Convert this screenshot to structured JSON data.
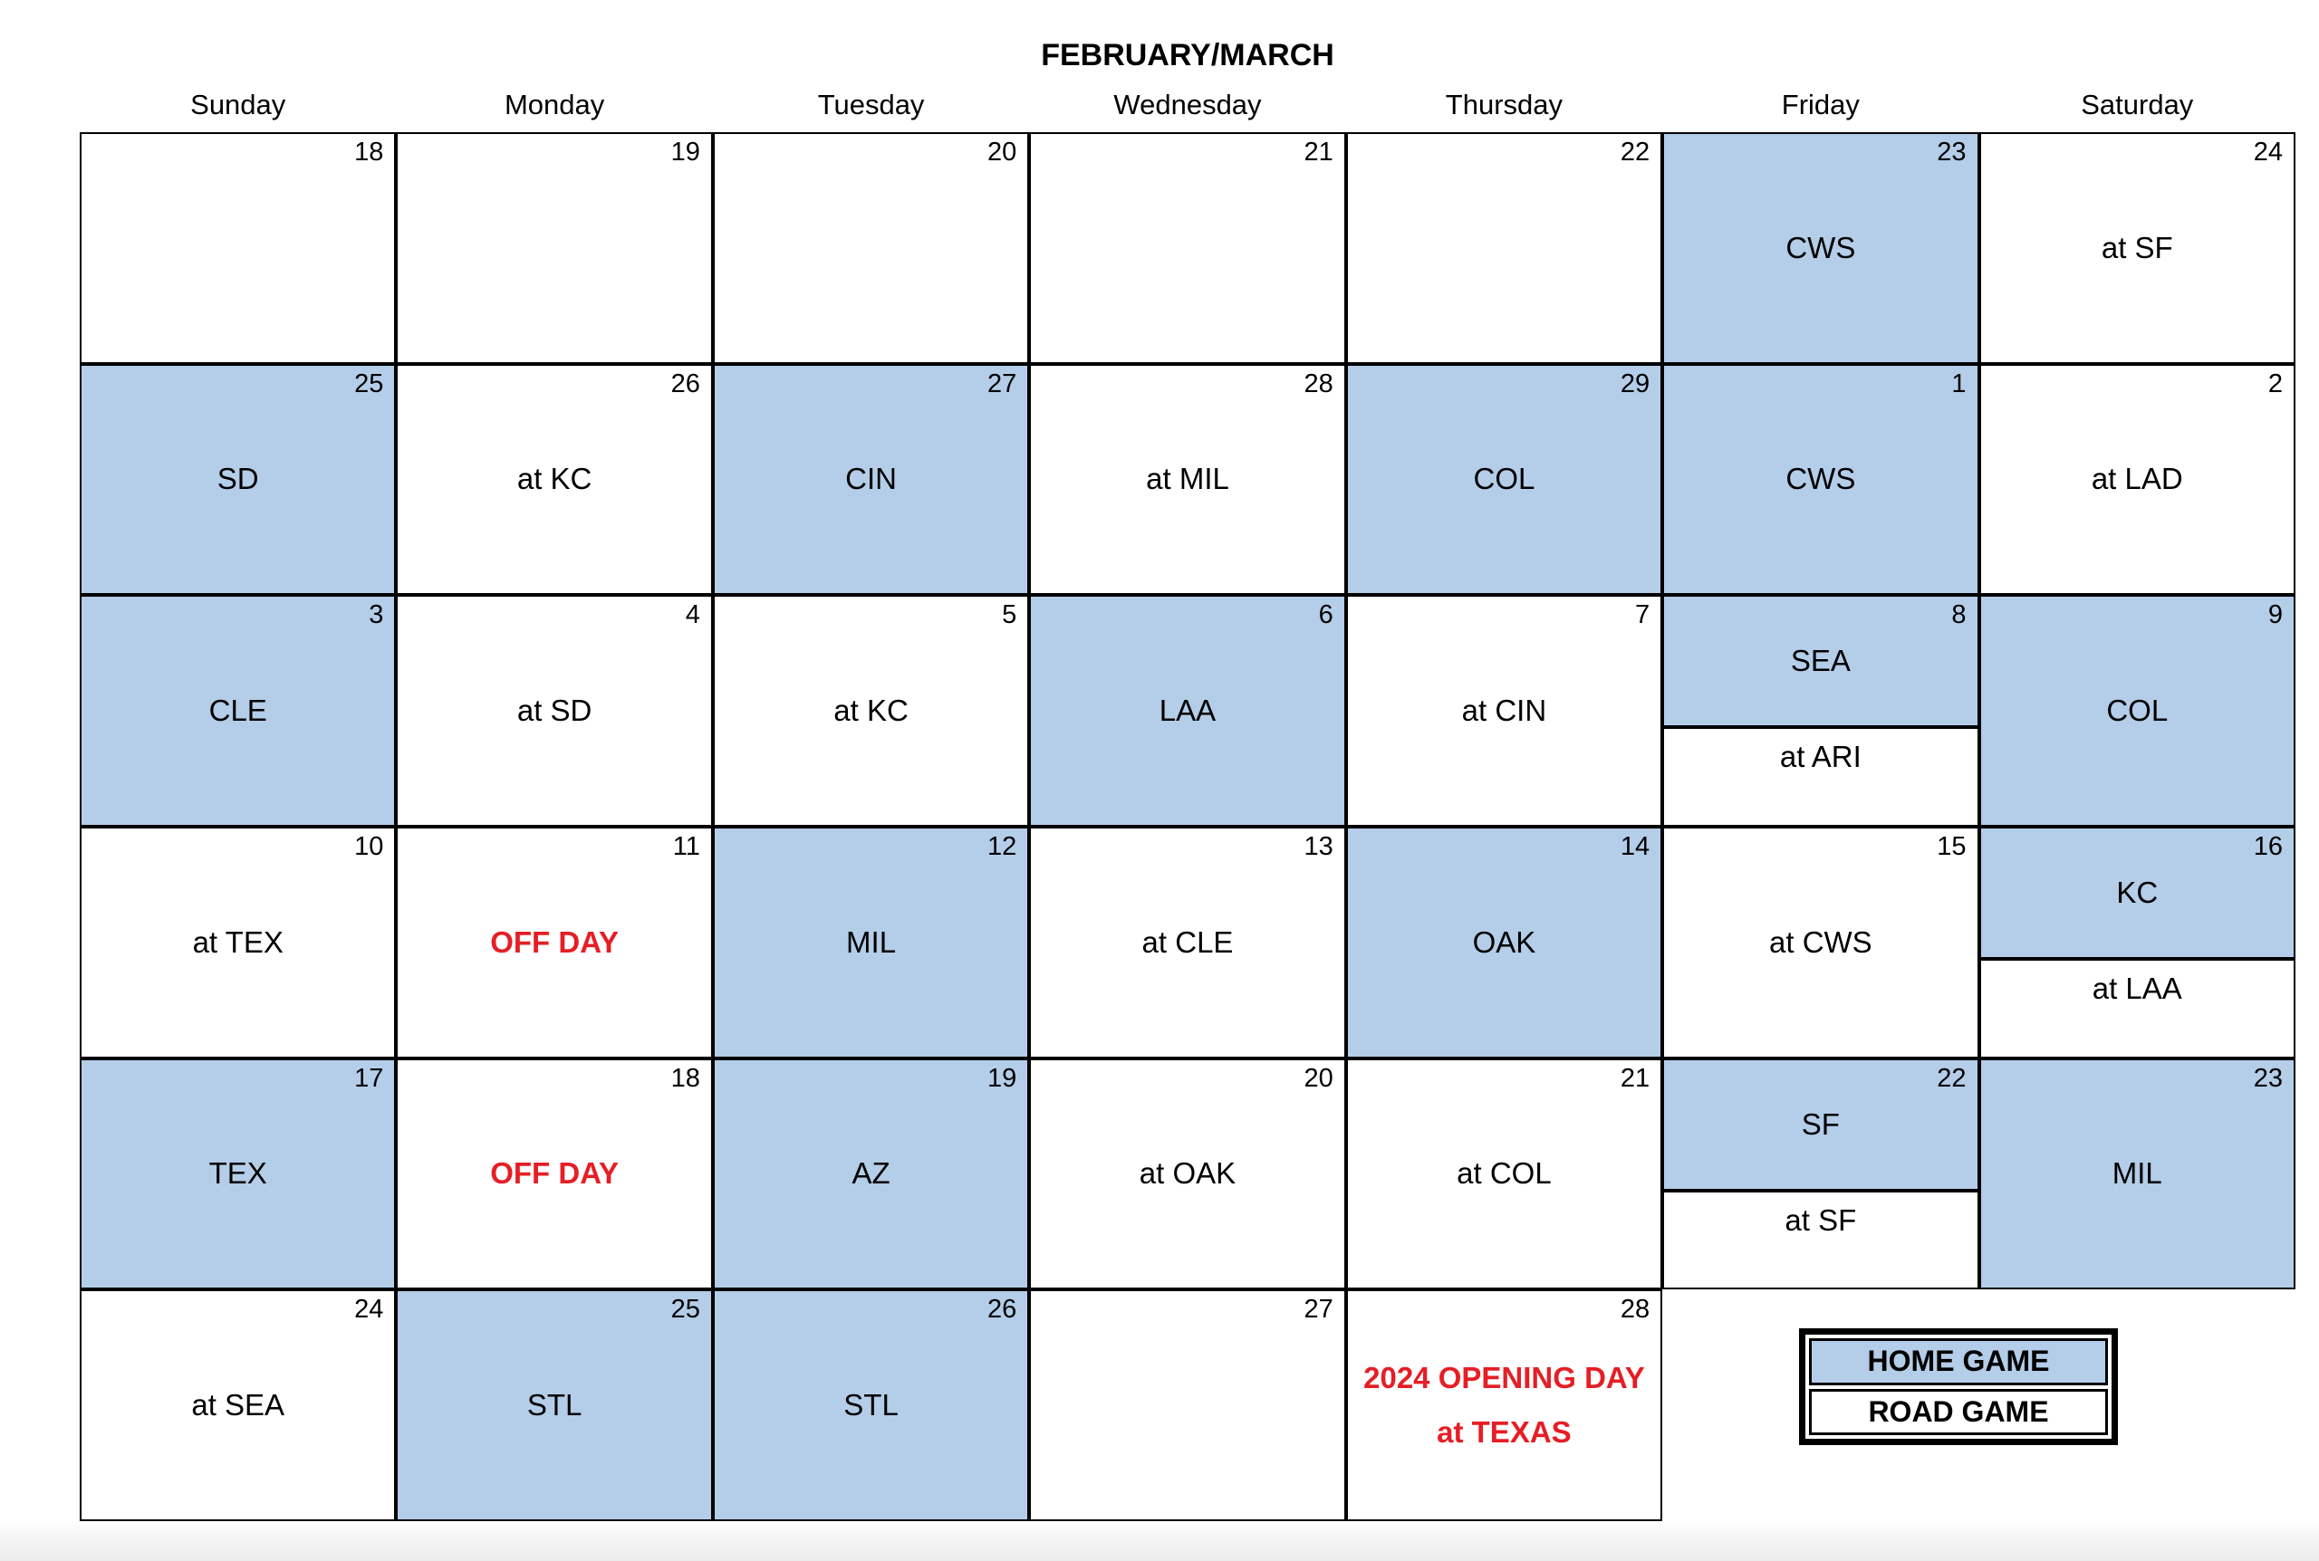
{
  "title": "FEBRUARY/MARCH",
  "day_headers": [
    "Sunday",
    "Monday",
    "Tuesday",
    "Wednesday",
    "Thursday",
    "Friday",
    "Saturday"
  ],
  "colors": {
    "home_game_blue": "#b4cde8",
    "road_game_white": "#ffffff",
    "highlight_red": "#e61e25",
    "grid_black": "#000000"
  },
  "legend": {
    "home_label": "HOME GAME",
    "road_label": "ROAD GAME"
  },
  "weeks": [
    {
      "cells": [
        {
          "date": "18"
        },
        {
          "date": "19"
        },
        {
          "date": "20"
        },
        {
          "date": "21"
        },
        {
          "date": "22"
        },
        {
          "date": "23",
          "label": "CWS"
        },
        {
          "date": "24",
          "label": "at SF"
        }
      ]
    },
    {
      "cells": [
        {
          "date": "25",
          "label": "SD"
        },
        {
          "date": "26",
          "label": "at KC"
        },
        {
          "date": "27",
          "label": "CIN"
        },
        {
          "date": "28",
          "label": "at MIL"
        },
        {
          "date": "29",
          "label": "COL"
        },
        {
          "date": "1",
          "label": "CWS"
        },
        {
          "date": "2",
          "label": "at LAD"
        }
      ]
    },
    {
      "cells": [
        {
          "date": "3",
          "label": "CLE"
        },
        {
          "date": "4",
          "label": "at SD"
        },
        {
          "date": "5",
          "label": "at KC"
        },
        {
          "date": "6",
          "label": "LAA"
        },
        {
          "date": "7",
          "label": "at CIN"
        },
        {
          "date": "8",
          "home_label": "SEA",
          "road_label": "at ARI"
        },
        {
          "date": "9",
          "label": "COL"
        }
      ]
    },
    {
      "cells": [
        {
          "date": "10",
          "label": "at TEX"
        },
        {
          "date": "11",
          "label": "OFF DAY"
        },
        {
          "date": "12",
          "label": "MIL"
        },
        {
          "date": "13",
          "label": "at CLE"
        },
        {
          "date": "14",
          "label": "OAK"
        },
        {
          "date": "15",
          "label": "at CWS"
        },
        {
          "date": "16",
          "home_label": "KC",
          "road_label": "at LAA"
        }
      ]
    },
    {
      "cells": [
        {
          "date": "17",
          "label": "TEX"
        },
        {
          "date": "18",
          "label": "OFF DAY"
        },
        {
          "date": "19",
          "label": "AZ"
        },
        {
          "date": "20",
          "label": "at OAK"
        },
        {
          "date": "21",
          "label": "at COL"
        },
        {
          "date": "22",
          "home_label": "SF",
          "road_label": "at SF"
        },
        {
          "date": "23",
          "label": "MIL"
        }
      ]
    },
    {
      "cells": [
        {
          "date": "24",
          "label": "at SEA"
        },
        {
          "date": "25",
          "label": "STL"
        },
        {
          "date": "26",
          "label": "STL"
        },
        {
          "date": "27"
        },
        {
          "date": "28",
          "line1": "2024 OPENING DAY",
          "line2": "at TEXAS"
        },
        {},
        {}
      ]
    }
  ]
}
